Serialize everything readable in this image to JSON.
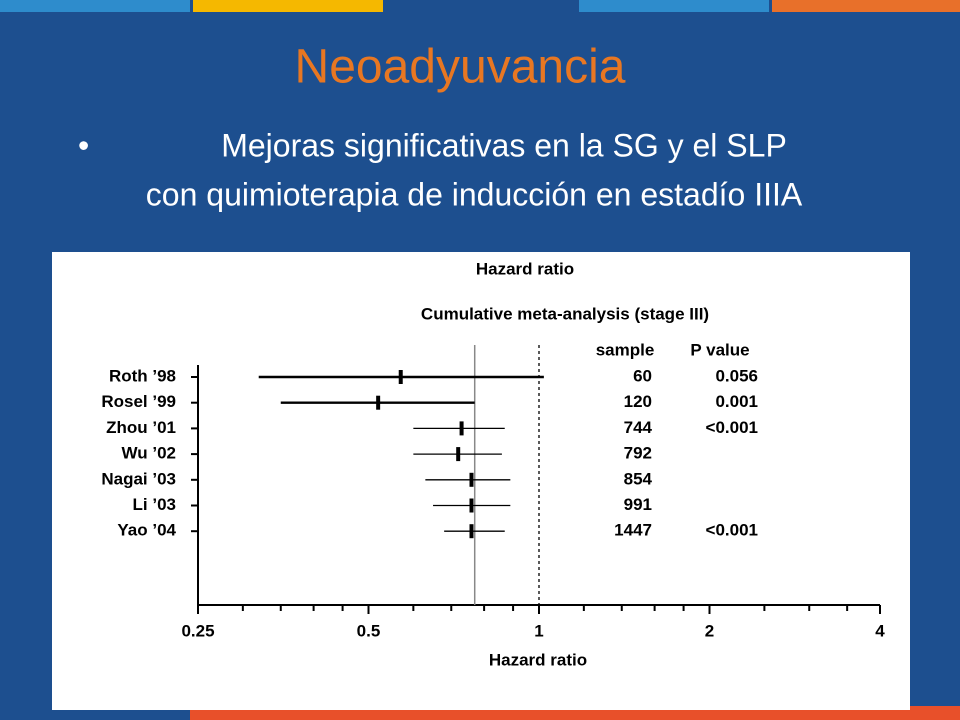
{
  "slide": {
    "title": "Neoadyuvancia",
    "bullet": "•",
    "lines": [
      "Mejoras significativas en la SG y el SLP",
      "con quimioterapia de inducción en estadío IIIA"
    ]
  },
  "chart_data": {
    "type": "forest",
    "title": "Hazard ratio",
    "subtitle": "Cumulative meta-analysis (stage III)",
    "x_label": "Hazard ratio",
    "x_scale": "log",
    "xlim": [
      0.25,
      4
    ],
    "xticks": [
      0.25,
      0.5,
      1,
      2,
      4
    ],
    "xminorticks": [
      0.3,
      0.35,
      0.4,
      0.45,
      0.6,
      0.7,
      0.8,
      0.9,
      1.2,
      1.4,
      1.6,
      1.8,
      2.5,
      3,
      3.5
    ],
    "reference_line": 1,
    "pooled_line": 0.77,
    "color": "#000000",
    "columns": [
      "sample",
      "P value"
    ],
    "categories": [
      "Roth ’98",
      "Rosel ’99",
      "Zhou ’01",
      "Wu ’02",
      "Nagai ’03",
      "Li ’03",
      "Yao ’04"
    ],
    "values": [
      0.57,
      0.52,
      0.73,
      0.72,
      0.76,
      0.76,
      0.76
    ],
    "lower": [
      0.32,
      0.35,
      0.6,
      0.6,
      0.63,
      0.65,
      0.68
    ],
    "upper": [
      1.02,
      0.77,
      0.87,
      0.86,
      0.89,
      0.89,
      0.87
    ],
    "sample": [
      60,
      120,
      744,
      792,
      854,
      991,
      1447
    ],
    "p_values": [
      "0.056",
      "0.001",
      "<0.001",
      null,
      null,
      null,
      "<0.001"
    ]
  }
}
